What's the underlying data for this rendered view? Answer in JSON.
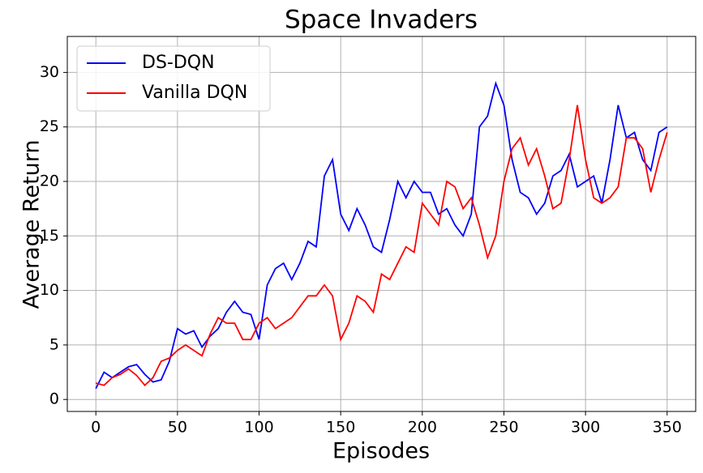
{
  "chart_data": {
    "type": "line",
    "title": "Space Invaders",
    "x_label": "Episodes",
    "y_label": "Average Return",
    "x": [
      0,
      5,
      10,
      15,
      20,
      25,
      30,
      35,
      40,
      45,
      50,
      55,
      60,
      65,
      70,
      75,
      80,
      85,
      90,
      95,
      100,
      105,
      110,
      115,
      120,
      125,
      130,
      135,
      140,
      145,
      150,
      155,
      160,
      165,
      170,
      175,
      180,
      185,
      190,
      195,
      200,
      205,
      210,
      215,
      220,
      225,
      230,
      235,
      240,
      245,
      250,
      255,
      260,
      265,
      270,
      275,
      280,
      285,
      290,
      295,
      300,
      305,
      310,
      315,
      320,
      325,
      330,
      335,
      340,
      345,
      350
    ],
    "series": [
      {
        "name": "DS-DQN",
        "color": "#0000ff",
        "values": [
          1.0,
          2.5,
          2.0,
          2.5,
          3.0,
          3.2,
          2.3,
          1.6,
          1.8,
          3.5,
          6.5,
          6.0,
          6.3,
          4.8,
          5.8,
          6.5,
          8.0,
          9.0,
          8.0,
          7.8,
          5.5,
          10.5,
          12.0,
          12.5,
          11.0,
          12.5,
          14.5,
          14.0,
          20.5,
          22.0,
          17.0,
          15.5,
          17.5,
          16.0,
          14.0,
          13.5,
          16.5,
          20.0,
          18.5,
          20.0,
          19.0,
          19.0,
          17.0,
          17.5,
          16.0,
          15.0,
          17.0,
          25.0,
          26.0,
          29.0,
          27.0,
          22.0,
          19.0,
          18.5,
          17.0,
          18.0,
          20.5,
          21.0,
          22.5,
          19.5,
          20.0,
          20.5,
          18.0,
          22.0,
          27.0,
          24.0,
          24.5,
          22.0,
          21.0,
          24.5,
          25.0
        ]
      },
      {
        "name": "Vanilla DQN",
        "color": "#ff0000",
        "values": [
          1.5,
          1.3,
          2.0,
          2.3,
          2.8,
          2.2,
          1.3,
          2.0,
          3.5,
          3.8,
          4.5,
          5.0,
          4.5,
          4.0,
          6.0,
          7.5,
          7.0,
          7.0,
          5.5,
          5.5,
          7.0,
          7.5,
          6.5,
          7.0,
          7.5,
          8.5,
          9.5,
          9.5,
          10.5,
          9.5,
          5.5,
          7.0,
          9.5,
          9.0,
          8.0,
          11.5,
          11.0,
          12.5,
          14.0,
          13.5,
          18.0,
          17.0,
          16.0,
          20.0,
          19.5,
          17.5,
          18.5,
          16.0,
          13.0,
          15.0,
          20.0,
          23.0,
          24.0,
          21.5,
          23.0,
          20.5,
          17.5,
          18.0,
          22.0,
          27.0,
          22.0,
          18.5,
          18.0,
          18.5,
          19.5,
          24.0,
          24.0,
          23.0,
          19.0,
          22.0,
          24.5
        ]
      }
    ],
    "xlim": [
      -17.5,
      367.5
    ],
    "ylim": [
      -1.1,
      33.3
    ],
    "xticks": [
      0,
      50,
      100,
      150,
      200,
      250,
      300,
      350
    ],
    "yticks": [
      0,
      5,
      10,
      15,
      20,
      25,
      30
    ],
    "grid": true,
    "legend": "upper left"
  }
}
